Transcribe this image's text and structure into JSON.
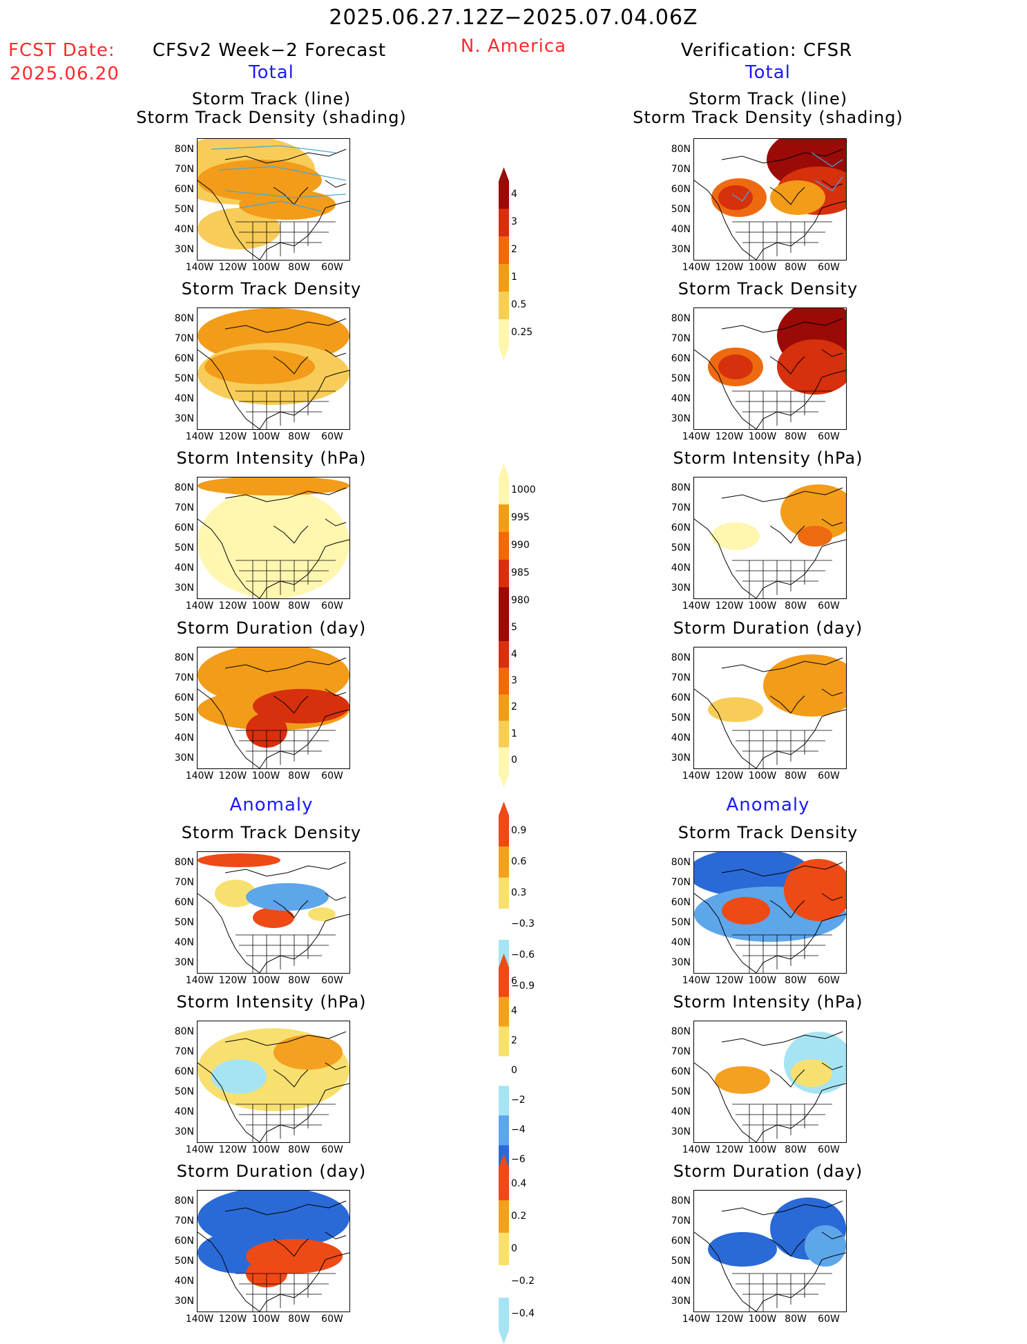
{
  "header": {
    "title": "2025.06.27.12Z−2025.07.04.06Z",
    "region": "N. America",
    "fcst_label": "FCST Date:",
    "fcst_date": "2025.06.20",
    "forecast_model": "CFSv2 Week−2 Forecast",
    "verification": "Verification: CFSR"
  },
  "sections": {
    "total": "Total",
    "anomaly": "Anomaly"
  },
  "axes": {
    "lat_ticks": [
      "80N",
      "70N",
      "60N",
      "50N",
      "40N",
      "30N"
    ],
    "lon_ticks": [
      "140W",
      "120W",
      "100W",
      "80W",
      "60W"
    ]
  },
  "panels": {
    "row1_title_1": "Storm Track (line)",
    "row1_title_2": "Storm Track Density (shading)",
    "density": "Storm Track Density",
    "intensity": "Storm Intensity (hPa)",
    "duration": "Storm Duration (day)"
  },
  "colorbars": [
    {
      "name": "density-colorbar",
      "labels": [
        "4",
        "3",
        "2",
        "1",
        "0.5",
        "0.25"
      ]
    },
    {
      "name": "intensity-colorbar",
      "labels": [
        "1000",
        "995",
        "990",
        "985",
        "980"
      ]
    },
    {
      "name": "duration-colorbar",
      "labels": [
        "5",
        "4",
        "3",
        "2",
        "1",
        "0"
      ]
    },
    {
      "name": "density-anomaly-colorbar",
      "labels": [
        "0.9",
        "0.6",
        "0.3",
        "−0.3",
        "−0.6",
        "−0.9"
      ]
    },
    {
      "name": "intensity-anomaly-colorbar",
      "labels": [
        "6",
        "4",
        "2",
        "0",
        "−2",
        "−4",
        "−6"
      ]
    },
    {
      "name": "duration-anomaly-colorbar",
      "labels": [
        "0.4",
        "0.2",
        "0",
        "−0.2",
        "−0.4"
      ]
    }
  ],
  "colors": {
    "heat": [
      "#fff6b0",
      "#f8cc58",
      "#f29c1a",
      "#ee6a10",
      "#d6300c",
      "#9a0a06"
    ],
    "anomaly_pos": [
      "#f8e070",
      "#f4a020",
      "#ee4a16"
    ],
    "anomaly_neg": [
      "#a6e4f4",
      "#5ea6ea",
      "#2a6ad6"
    ],
    "track_line": "#4aa6d6",
    "title_red": "#ff2a2a",
    "section_blue": "#1a1aff"
  },
  "chart_data": [
    {
      "type": "heatmap",
      "panel": "forecast-total-track",
      "title": "Storm Track (line) / Storm Track Density (shading)",
      "domain": "N. America",
      "lon_range": [
        "140W",
        "55W"
      ],
      "lat_range": [
        "25N",
        "85N"
      ],
      "colorbar": [
        "0.25",
        "0.5",
        "1",
        "2",
        "3",
        "4"
      ]
    },
    {
      "type": "heatmap",
      "panel": "verification-total-track",
      "title": "Storm Track (line) / Storm Track Density (shading)",
      "colorbar": [
        "0.25",
        "0.5",
        "1",
        "2",
        "3",
        "4"
      ]
    },
    {
      "type": "heatmap",
      "panel": "forecast-total-density",
      "title": "Storm Track Density",
      "colorbar": [
        "0.25",
        "0.5",
        "1",
        "2",
        "3",
        "4"
      ]
    },
    {
      "type": "heatmap",
      "panel": "verification-total-density",
      "title": "Storm Track Density",
      "colorbar": [
        "0.25",
        "0.5",
        "1",
        "2",
        "3",
        "4"
      ]
    },
    {
      "type": "heatmap",
      "panel": "forecast-total-intensity",
      "title": "Storm Intensity (hPa)",
      "colorbar": [
        "980",
        "985",
        "990",
        "995",
        "1000"
      ]
    },
    {
      "type": "heatmap",
      "panel": "verification-total-intensity",
      "title": "Storm Intensity (hPa)",
      "colorbar": [
        "980",
        "985",
        "990",
        "995",
        "1000"
      ]
    },
    {
      "type": "heatmap",
      "panel": "forecast-total-duration",
      "title": "Storm Duration (day)",
      "colorbar": [
        "0",
        "1",
        "2",
        "3",
        "4",
        "5"
      ]
    },
    {
      "type": "heatmap",
      "panel": "verification-total-duration",
      "title": "Storm Duration (day)",
      "colorbar": [
        "0",
        "1",
        "2",
        "3",
        "4",
        "5"
      ]
    },
    {
      "type": "heatmap",
      "panel": "forecast-anomaly-density",
      "title": "Storm Track Density",
      "colorbar": [
        "-0.9",
        "-0.6",
        "-0.3",
        "0.3",
        "0.6",
        "0.9"
      ]
    },
    {
      "type": "heatmap",
      "panel": "verification-anomaly-density",
      "title": "Storm Track Density",
      "colorbar": [
        "-0.9",
        "-0.6",
        "-0.3",
        "0.3",
        "0.6",
        "0.9"
      ]
    },
    {
      "type": "heatmap",
      "panel": "forecast-anomaly-intensity",
      "title": "Storm Intensity (hPa)",
      "colorbar": [
        "-6",
        "-4",
        "-2",
        "0",
        "2",
        "4",
        "6"
      ]
    },
    {
      "type": "heatmap",
      "panel": "verification-anomaly-intensity",
      "title": "Storm Intensity (hPa)",
      "colorbar": [
        "-6",
        "-4",
        "-2",
        "0",
        "2",
        "4",
        "6"
      ]
    },
    {
      "type": "heatmap",
      "panel": "forecast-anomaly-duration",
      "title": "Storm Duration (day)",
      "colorbar": [
        "-0.4",
        "-0.2",
        "0",
        "0.2",
        "0.4"
      ]
    },
    {
      "type": "heatmap",
      "panel": "verification-anomaly-duration",
      "title": "Storm Duration (day)",
      "colorbar": [
        "-0.4",
        "-0.2",
        "0",
        "0.2",
        "0.4"
      ]
    }
  ]
}
